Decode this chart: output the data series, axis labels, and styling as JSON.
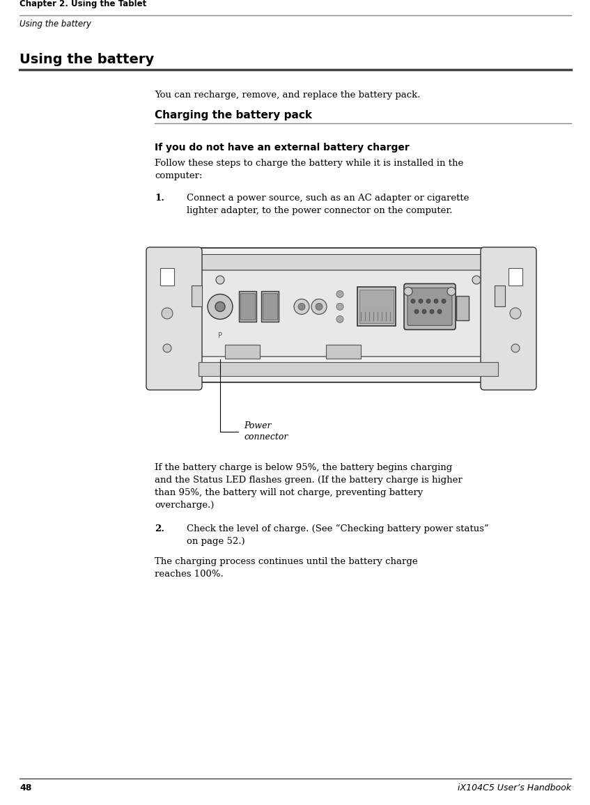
{
  "page_width": 8.47,
  "page_height": 11.56,
  "bg_color": "#ffffff",
  "header_chapter": "Chapter 2. Using the Tablet",
  "header_section": "Using the battery",
  "footer_page": "48",
  "footer_title": "iX104C5 User’s Handbook",
  "section_title": "Using the battery",
  "intro_text": "You can recharge, remove, and replace the battery pack.",
  "subsection_title": "Charging the battery pack",
  "subsubsection_title": "If you do not have an external battery charger",
  "step1_num": "1.",
  "step1_text": "Connect a power source, such as an AC adapter or cigarette\nlighter adapter, to the power connector on the computer.",
  "step2_num": "2.",
  "step2_text": "Check the level of charge. (See “Checking battery power status”\non page 52.)",
  "caption_line1": "Power",
  "caption_line2": "connector",
  "body_text2a": "If the battery charge is below 95%, the battery begins charging",
  "body_text2b": "and the Status LED flashes green. (If the battery charge is higher",
  "body_text2c": "than 95%, the battery will not charge, preventing battery",
  "body_text2d": "overcharge.)",
  "closing_text": "The charging process continues until the battery charge\nreaches 100%.",
  "header_line_color": "#888888",
  "section_line_color": "#444444",
  "subsection_line_color": "#888888",
  "header_chapter_fontsize": 8.5,
  "header_section_fontsize": 8.5,
  "section_title_fontsize": 14,
  "subsection_title_fontsize": 11,
  "subsubsection_fontsize": 10,
  "body_fontsize": 9.5,
  "footer_fontsize": 9
}
